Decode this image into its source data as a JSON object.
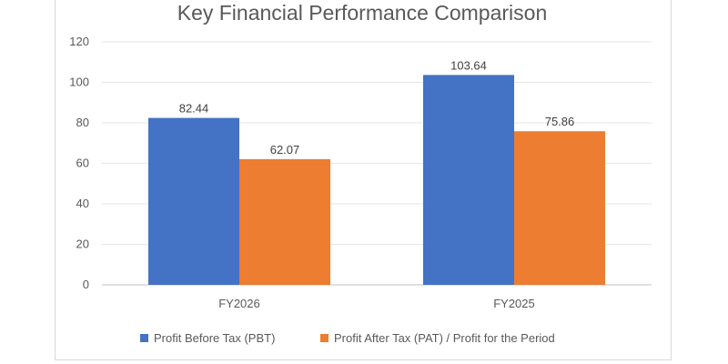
{
  "chart_data": {
    "type": "bar",
    "title": "Key Financial Performance Comparison",
    "categories": [
      "FY2026",
      "FY2025"
    ],
    "series": [
      {
        "name": "Profit Before Tax (PBT)",
        "values": [
          82.44,
          103.64
        ],
        "labels": [
          "82.44",
          "103.64"
        ],
        "color": "#4472c4"
      },
      {
        "name": "Profit After Tax (PAT) / Profit for the Period",
        "values": [
          62.07,
          75.86
        ],
        "labels": [
          "62.07",
          "75.86"
        ],
        "color": "#ed7d31"
      }
    ],
    "yticks": [
      "0",
      "20",
      "40",
      "60",
      "80",
      "100",
      "120"
    ],
    "ylim": [
      0,
      120
    ],
    "grid": true,
    "legend": "bottom"
  }
}
